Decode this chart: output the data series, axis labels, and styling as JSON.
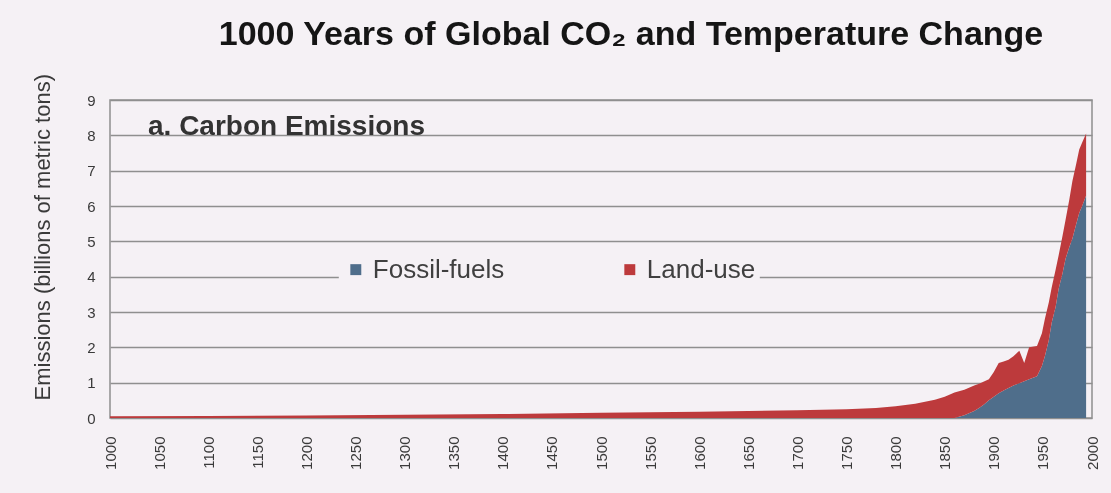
{
  "chart_data": {
    "type": "area",
    "title": "1000 Years of Global CO₂ and Temperature Change",
    "subtitle": "a. Carbon Emissions",
    "ylabel": "Emissions (billions of metric tons)",
    "x": [
      1000,
      1100,
      1200,
      1300,
      1400,
      1500,
      1600,
      1650,
      1700,
      1750,
      1780,
      1800,
      1820,
      1840,
      1850,
      1860,
      1870,
      1880,
      1885,
      1890,
      1895,
      1900,
      1905,
      1910,
      1915,
      1920,
      1926,
      1931,
      1936,
      1944,
      1949,
      1952,
      1956,
      1959,
      1963,
      1966,
      1970,
      1973,
      1977,
      1980,
      1984,
      1987,
      1990,
      1994
    ],
    "series": [
      {
        "name": "Fossil-fuels",
        "color": "#4f6e8b",
        "values": [
          0,
          0,
          0,
          0,
          0,
          0,
          0,
          0,
          0,
          0,
          0,
          0,
          0,
          0,
          0,
          0,
          0.08,
          0.2,
          0.28,
          0.38,
          0.5,
          0.6,
          0.7,
          0.78,
          0.85,
          0.92,
          0.98,
          1.04,
          1.1,
          1.18,
          1.47,
          1.75,
          2.2,
          2.7,
          3.15,
          3.65,
          4.1,
          4.5,
          4.85,
          5.07,
          5.5,
          5.8,
          6.0,
          6.3
        ]
      },
      {
        "name": "Land-use",
        "color": "#bd3a3c",
        "values": [
          0.05,
          0.06,
          0.07,
          0.09,
          0.11,
          0.15,
          0.18,
          0.2,
          0.22,
          0.25,
          0.28,
          0.33,
          0.4,
          0.52,
          0.6,
          0.72,
          0.72,
          0.72,
          0.69,
          0.65,
          0.6,
          0.7,
          0.86,
          0.82,
          0.8,
          0.83,
          0.92,
          0.52,
          0.9,
          0.86,
          0.93,
          1.05,
          1.07,
          1.0,
          1.05,
          0.95,
          1.06,
          1.1,
          1.35,
          1.63,
          1.7,
          1.8,
          1.8,
          1.75
        ]
      }
    ],
    "stacked": true,
    "xlim": [
      1000,
      2000
    ],
    "xticks": [
      1000,
      1050,
      1100,
      1150,
      1200,
      1250,
      1300,
      1350,
      1400,
      1450,
      1500,
      1550,
      1600,
      1650,
      1700,
      1750,
      1800,
      1850,
      1900,
      1950,
      2000
    ],
    "ylim": [
      0,
      9
    ],
    "yticks": [
      0,
      1,
      2,
      3,
      4,
      5,
      6,
      7,
      8,
      9
    ],
    "grid": "y",
    "legend": "center"
  }
}
